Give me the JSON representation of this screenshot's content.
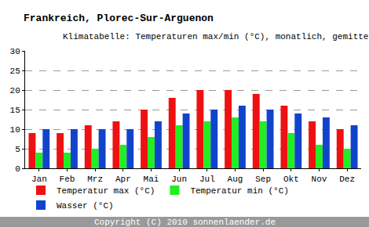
{
  "chart_data": {
    "type": "bar",
    "title": "Frankreich, Plorec-Sur-Arguenon",
    "subtitle": "Klimatabelle: Temperaturen max/min (°C), monatlich, gemittelt",
    "categories": [
      "Jan",
      "Feb",
      "Mrz",
      "Apr",
      "Mai",
      "Jun",
      "Jul",
      "Aug",
      "Sep",
      "Okt",
      "Nov",
      "Dez"
    ],
    "series": [
      {
        "name": "Temperatur max (°C)",
        "color": "#ee1111",
        "values": [
          9,
          9,
          11,
          12,
          15,
          18,
          20,
          20,
          19,
          16,
          12,
          10
        ]
      },
      {
        "name": "Temperatur min (°C)",
        "color": "#22ee22",
        "values": [
          4,
          4,
          5,
          6,
          8,
          11,
          12,
          13,
          12,
          9,
          6,
          5
        ]
      },
      {
        "name": "Wasser (°C)",
        "color": "#1144cc",
        "values": [
          10,
          10,
          10,
          10,
          12,
          14,
          15,
          16,
          15,
          14,
          13,
          11
        ]
      }
    ],
    "ylim": [
      0,
      30
    ],
    "yticks": [
      0,
      5,
      10,
      15,
      20,
      25,
      30
    ],
    "grid": true,
    "legend": "bottom",
    "annotations": [
      "Copyright (C) 2010 sonnenlaender.de"
    ]
  }
}
